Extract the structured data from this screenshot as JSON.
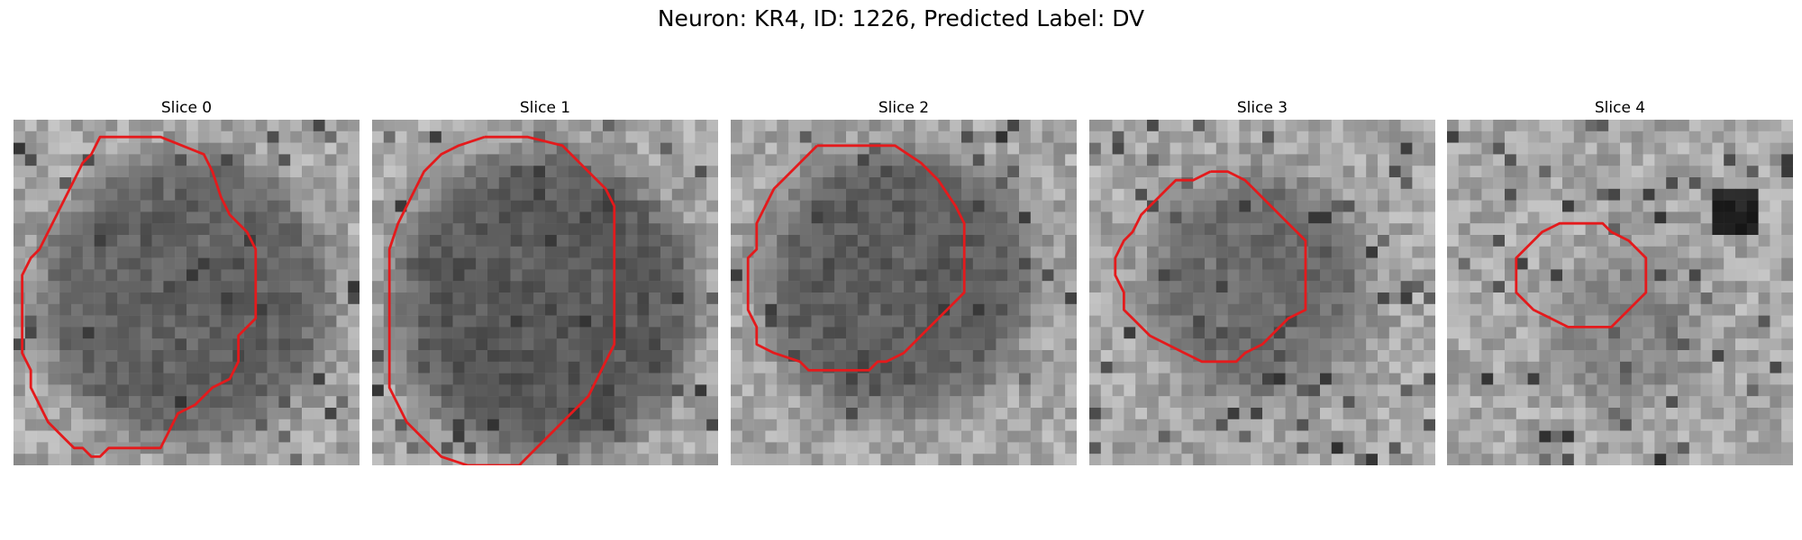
{
  "figure": {
    "title": "Neuron: KR4, ID: 1226, Predicted Label: DV"
  },
  "contour_color": "#e41a1c",
  "grid_resolution": 30,
  "slices": [
    {
      "label": "Slice 0",
      "contour": [
        [
          14,
          2
        ],
        [
          17,
          2
        ],
        [
          22,
          4
        ],
        [
          23,
          6
        ],
        [
          24,
          9
        ],
        [
          25,
          11
        ],
        [
          27,
          13
        ],
        [
          28,
          15
        ],
        [
          28,
          17
        ],
        [
          28,
          21
        ],
        [
          28,
          23
        ],
        [
          26,
          25
        ],
        [
          26,
          27
        ],
        [
          26,
          28
        ],
        [
          25,
          30
        ],
        [
          23,
          31
        ],
        [
          21,
          33
        ],
        [
          19,
          34
        ],
        [
          18,
          36
        ],
        [
          17,
          38
        ],
        [
          16,
          38
        ],
        [
          15,
          38
        ],
        [
          14,
          38
        ],
        [
          13,
          38
        ],
        [
          12,
          38
        ],
        [
          11,
          38
        ],
        [
          10,
          39
        ],
        [
          9,
          39
        ],
        [
          8,
          38
        ],
        [
          7,
          38
        ],
        [
          6,
          37
        ],
        [
          5,
          36
        ],
        [
          4,
          35
        ],
        [
          3,
          33
        ],
        [
          2,
          31
        ],
        [
          2,
          29
        ],
        [
          1,
          27
        ],
        [
          1,
          25
        ],
        [
          1,
          21
        ],
        [
          1,
          18
        ],
        [
          2,
          16
        ],
        [
          3,
          15
        ],
        [
          4,
          13
        ],
        [
          5,
          11
        ],
        [
          6,
          9
        ],
        [
          7,
          7
        ],
        [
          8,
          5
        ],
        [
          9,
          4
        ],
        [
          10,
          2
        ],
        [
          12,
          2
        ],
        [
          14,
          2
        ]
      ]
    },
    {
      "label": "Slice 1",
      "contour": [
        [
          13,
          2
        ],
        [
          18,
          2
        ],
        [
          22,
          3
        ],
        [
          25,
          6
        ],
        [
          27,
          8
        ],
        [
          28,
          10
        ],
        [
          28,
          14
        ],
        [
          28,
          18
        ],
        [
          28,
          22
        ],
        [
          28,
          26
        ],
        [
          27,
          28
        ],
        [
          26,
          30
        ],
        [
          25,
          32
        ],
        [
          23,
          34
        ],
        [
          21,
          36
        ],
        [
          19,
          38
        ],
        [
          17,
          40
        ],
        [
          15,
          40
        ],
        [
          13,
          40
        ],
        [
          11,
          40
        ],
        [
          8,
          39
        ],
        [
          6,
          37
        ],
        [
          4,
          35
        ],
        [
          3,
          33
        ],
        [
          2,
          31
        ],
        [
          2,
          27
        ],
        [
          2,
          23
        ],
        [
          2,
          19
        ],
        [
          2,
          15
        ],
        [
          3,
          12
        ],
        [
          4,
          10
        ],
        [
          5,
          8
        ],
        [
          6,
          6
        ],
        [
          8,
          4
        ],
        [
          10,
          3
        ],
        [
          13,
          2
        ]
      ]
    },
    {
      "label": "Slice 2",
      "contour": [
        [
          10,
          3
        ],
        [
          19,
          3
        ],
        [
          22,
          5
        ],
        [
          24,
          7
        ],
        [
          26,
          10
        ],
        [
          27,
          12
        ],
        [
          27,
          16
        ],
        [
          27,
          20
        ],
        [
          25,
          22
        ],
        [
          23,
          24
        ],
        [
          22,
          25
        ],
        [
          20,
          27
        ],
        [
          18,
          28
        ],
        [
          17,
          28
        ],
        [
          16,
          29
        ],
        [
          9,
          29
        ],
        [
          8,
          28
        ],
        [
          5,
          27
        ],
        [
          3,
          26
        ],
        [
          3,
          24
        ],
        [
          2,
          22
        ],
        [
          2,
          20
        ],
        [
          2,
          19
        ],
        [
          2,
          16
        ],
        [
          3,
          15
        ],
        [
          3,
          12
        ],
        [
          4,
          10
        ],
        [
          5,
          8
        ],
        [
          6,
          7
        ],
        [
          7,
          6
        ],
        [
          8,
          5
        ],
        [
          9,
          4
        ],
        [
          10,
          3
        ]
      ]
    },
    {
      "label": "Slice 3",
      "contour": [
        [
          14,
          6
        ],
        [
          16,
          6
        ],
        [
          18,
          7
        ],
        [
          19,
          8
        ],
        [
          20,
          9
        ],
        [
          21,
          10
        ],
        [
          22,
          11
        ],
        [
          23,
          12
        ],
        [
          24,
          13
        ],
        [
          25,
          14
        ],
        [
          25,
          20
        ],
        [
          25,
          22
        ],
        [
          23,
          23
        ],
        [
          22,
          24
        ],
        [
          21,
          25
        ],
        [
          20,
          26
        ],
        [
          18,
          27
        ],
        [
          17,
          28
        ],
        [
          14,
          28
        ],
        [
          13,
          28
        ],
        [
          11,
          27
        ],
        [
          9,
          26
        ],
        [
          7,
          25
        ],
        [
          5,
          23
        ],
        [
          4,
          22
        ],
        [
          4,
          20
        ],
        [
          3,
          18
        ],
        [
          3,
          16
        ],
        [
          4,
          14
        ],
        [
          5,
          13
        ],
        [
          6,
          11
        ],
        [
          7,
          10
        ],
        [
          8,
          9
        ],
        [
          9,
          8
        ],
        [
          10,
          7
        ],
        [
          12,
          7
        ],
        [
          14,
          6
        ]
      ]
    },
    {
      "label": "Slice 4",
      "contour": [
        [
          15,
          12
        ],
        [
          18,
          12
        ],
        [
          19,
          13
        ],
        [
          21,
          14
        ],
        [
          22,
          15
        ],
        [
          23,
          16
        ],
        [
          23,
          18
        ],
        [
          23,
          20
        ],
        [
          22,
          21
        ],
        [
          21,
          22
        ],
        [
          20,
          23
        ],
        [
          19,
          24
        ],
        [
          18,
          24
        ],
        [
          16,
          24
        ],
        [
          14,
          24
        ],
        [
          12,
          23
        ],
        [
          10,
          22
        ],
        [
          9,
          21
        ],
        [
          8,
          20
        ],
        [
          8,
          18
        ],
        [
          8,
          16
        ],
        [
          9,
          15
        ],
        [
          10,
          14
        ],
        [
          11,
          13
        ],
        [
          13,
          12
        ],
        [
          15,
          12
        ]
      ]
    }
  ]
}
